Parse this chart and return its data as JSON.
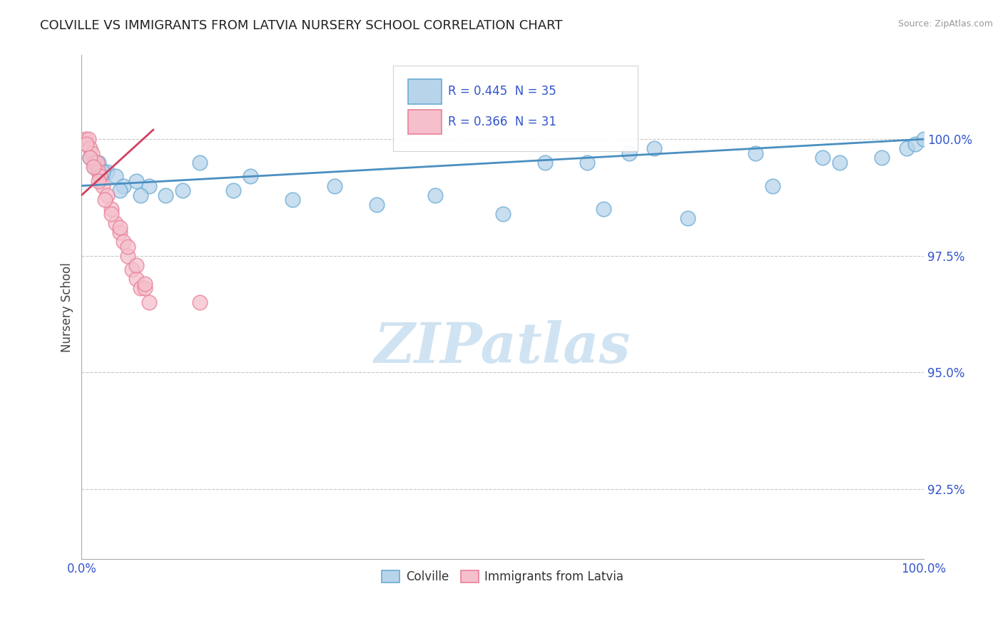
{
  "title": "COLVILLE VS IMMIGRANTS FROM LATVIA NURSERY SCHOOL CORRELATION CHART",
  "source_text": "Source: ZipAtlas.com",
  "ylabel": "Nursery School",
  "xmin": 0.0,
  "xmax": 100.0,
  "ymin": 91.0,
  "ymax": 101.8,
  "yticks": [
    92.5,
    95.0,
    97.5,
    100.0
  ],
  "ytick_labels": [
    "92.5%",
    "95.0%",
    "97.5%",
    "100.0%"
  ],
  "colville_x": [
    1.0,
    2.0,
    3.0,
    4.0,
    5.0,
    6.5,
    8.0,
    10.0,
    14.0,
    20.0,
    30.0,
    42.0,
    55.0,
    60.0,
    65.0,
    68.0,
    80.0,
    88.0,
    1.5,
    2.5,
    4.5,
    7.0,
    12.0,
    18.0,
    25.0,
    35.0,
    50.0,
    62.0,
    72.0,
    82.0,
    90.0,
    95.0,
    98.0,
    99.0,
    100.0
  ],
  "colville_y": [
    99.6,
    99.5,
    99.3,
    99.2,
    99.0,
    99.1,
    99.0,
    98.8,
    99.5,
    99.2,
    99.0,
    98.8,
    99.5,
    99.5,
    99.7,
    99.8,
    99.7,
    99.6,
    99.4,
    99.3,
    98.9,
    98.8,
    98.9,
    98.9,
    98.7,
    98.6,
    98.4,
    98.5,
    98.3,
    99.0,
    99.5,
    99.6,
    99.8,
    99.9,
    100.0
  ],
  "latvia_x": [
    0.5,
    0.8,
    1.0,
    1.2,
    1.5,
    1.8,
    2.0,
    2.2,
    2.5,
    3.0,
    3.5,
    4.0,
    4.5,
    5.0,
    5.5,
    6.0,
    6.5,
    7.0,
    7.5,
    8.0,
    0.6,
    1.0,
    1.4,
    2.0,
    2.8,
    3.5,
    4.5,
    5.5,
    6.5,
    7.5,
    14.0
  ],
  "latvia_y": [
    100.0,
    100.0,
    99.8,
    99.7,
    99.5,
    99.5,
    99.3,
    99.2,
    99.0,
    98.8,
    98.5,
    98.2,
    98.0,
    97.8,
    97.5,
    97.2,
    97.0,
    96.8,
    96.8,
    96.5,
    99.9,
    99.6,
    99.4,
    99.1,
    98.7,
    98.4,
    98.1,
    97.7,
    97.3,
    96.9,
    96.5
  ],
  "R_colville": 0.445,
  "N_colville": 35,
  "R_latvia": 0.366,
  "N_latvia": 31,
  "colville_color": "#b8d4ea",
  "colville_edge_color": "#6aaad4",
  "colville_line_color": "#4a8fc0",
  "latvia_color": "#f5c0cc",
  "latvia_edge_color": "#e88098",
  "latvia_line_color": "#d04060",
  "legend_text_color": "#3355cc",
  "watermark_color": "#c8dff0",
  "background_color": "#ffffff",
  "grid_color": "#c8c8c8",
  "source_color": "#999999",
  "title_color": "#222222",
  "ylabel_color": "#444444",
  "tick_color": "#3355cc"
}
